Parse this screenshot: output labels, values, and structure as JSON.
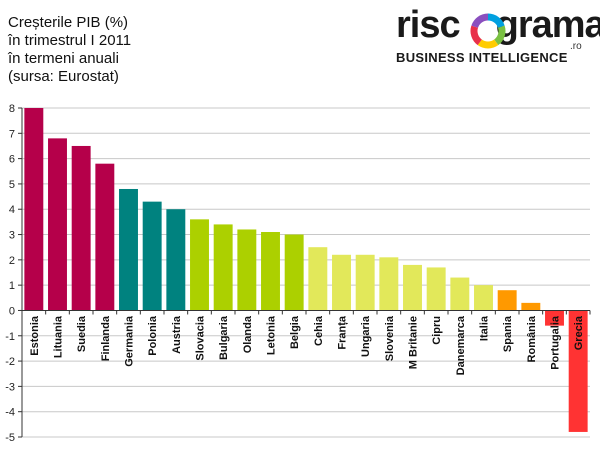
{
  "title_lines": [
    "Creșterile PIB (%)",
    "în trimestrul I 2011",
    "în termeni anuali",
    "(sursa: Eurostat)"
  ],
  "logo": {
    "word_left": "risc",
    "word_right": "grama",
    "suffix": ".ro",
    "tagline": "BUSINESS INTELLIGENCE"
  },
  "chart_data": {
    "type": "bar",
    "title": "Creșterile PIB (%) în trimestrul I 2011 în termeni anuali (sursa: Eurostat)",
    "xlabel": "",
    "ylabel": "",
    "ylim": [
      -5,
      8
    ],
    "yticks": [
      "8",
      "7",
      "6",
      "5",
      "4",
      "3",
      "2",
      "1",
      "0",
      "-1",
      "-2",
      "-3",
      "-4",
      "-5"
    ],
    "grid": true,
    "categories": [
      "Estonia",
      "Lituania",
      "Suedia",
      "Finlanda",
      "Germania",
      "Polonia",
      "Austria",
      "Slovacia",
      "Bulgaria",
      "Olanda",
      "Letonia",
      "Belgia",
      "Cehia",
      "Franța",
      "Ungaria",
      "Slovenia",
      "M Britanie",
      "Cipru",
      "Danemarca",
      "Italia",
      "Spania",
      "România",
      "Portugalia",
      "Grecia"
    ],
    "values": [
      8.0,
      6.8,
      6.5,
      5.8,
      4.8,
      4.3,
      4.0,
      3.6,
      3.4,
      3.2,
      3.1,
      3.0,
      2.5,
      2.2,
      2.2,
      2.1,
      1.8,
      1.7,
      1.3,
      1.0,
      0.8,
      0.3,
      -0.6,
      -4.8
    ],
    "colors": [
      "#b5004a",
      "#b5004a",
      "#b5004a",
      "#b5004a",
      "#00827f",
      "#00827f",
      "#00827f",
      "#acd000",
      "#acd000",
      "#acd000",
      "#acd000",
      "#acd000",
      "#e2e85a",
      "#e2e85a",
      "#e2e85a",
      "#e2e85a",
      "#e2e85a",
      "#e2e85a",
      "#e2e85a",
      "#e2e85a",
      "#ff9900",
      "#ff9900",
      "#ff3333",
      "#ff3333"
    ]
  },
  "colors": {
    "grid": "#c8c8c8",
    "axis": "#333333",
    "logo_ring": [
      "#00a0e0",
      "#7ac143",
      "#ffcc00",
      "#e8304a",
      "#8a4fbf"
    ]
  }
}
